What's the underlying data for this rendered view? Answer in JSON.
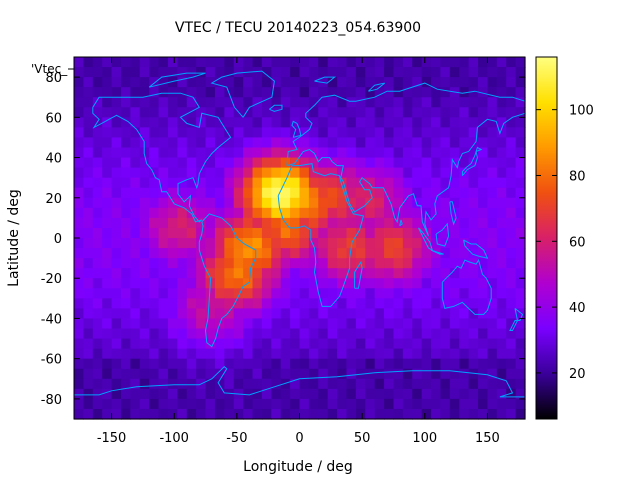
{
  "chart_data": {
    "type": "heatmap",
    "title": "VTEC / TECU 20140223_054.63900",
    "xlabel": "Longitude / deg",
    "ylabel": "Latitude / deg",
    "xlim": [
      -180,
      180
    ],
    "ylim": [
      -90,
      90
    ],
    "x_ticks": [
      -150,
      -100,
      -50,
      0,
      50,
      100,
      150
    ],
    "y_ticks": [
      -80,
      -60,
      -40,
      -20,
      0,
      20,
      40,
      60,
      80
    ],
    "colorbar": {
      "range": [
        6,
        116
      ],
      "ticks": [
        20,
        40,
        60,
        80,
        100
      ],
      "palette": [
        "#000000",
        "#3a009a",
        "#7a00ff",
        "#b000d0",
        "#d82068",
        "#f05010",
        "#ff9a00",
        "#ffe000",
        "#ffff80"
      ]
    },
    "legend_label": "'Vtec_",
    "overlay": "coastlines",
    "grid": false,
    "hotspots": [
      {
        "lon": -95,
        "lat": 5,
        "value": 60
      },
      {
        "lon": -40,
        "lat": -5,
        "value": 88
      },
      {
        "lon": -50,
        "lat": -18,
        "value": 82
      },
      {
        "lon": -15,
        "lat": 22,
        "value": 115
      },
      {
        "lon": 5,
        "lat": 18,
        "value": 85
      },
      {
        "lon": -10,
        "lat": 5,
        "value": 80
      },
      {
        "lon": 25,
        "lat": 20,
        "value": 72
      },
      {
        "lon": 55,
        "lat": 18,
        "value": 62
      },
      {
        "lon": 40,
        "lat": -5,
        "value": 70
      },
      {
        "lon": 75,
        "lat": -5,
        "value": 70
      },
      {
        "lon": -70,
        "lat": -35,
        "value": 55
      }
    ]
  },
  "colors": {
    "coastline": "#00a2ff"
  }
}
